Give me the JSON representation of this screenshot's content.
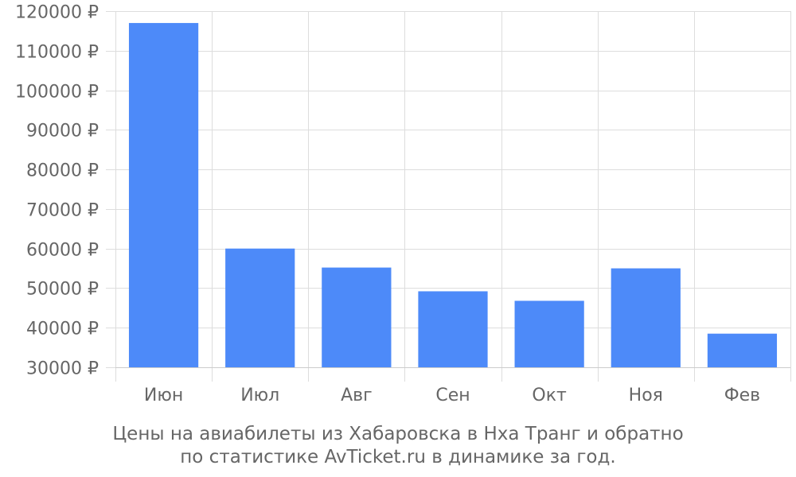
{
  "chart_data": {
    "type": "bar",
    "categories": [
      "Июн",
      "Июл",
      "Авг",
      "Сен",
      "Окт",
      "Ноя",
      "Фев"
    ],
    "values": [
      117000,
      60000,
      55200,
      49200,
      46800,
      55000,
      38500
    ],
    "ylim": [
      30000,
      120000
    ],
    "yticks": [
      30000,
      40000,
      50000,
      60000,
      70000,
      80000,
      90000,
      100000,
      110000,
      120000
    ],
    "ytick_suffix": " ₽",
    "bar_color": "#4d8af9",
    "grid": true,
    "caption_line1": "Цены на авиабилеты из Хабаровска в Нха Транг и обратно",
    "caption_line2": "по статистике AvTicket.ru в динамике за год."
  }
}
